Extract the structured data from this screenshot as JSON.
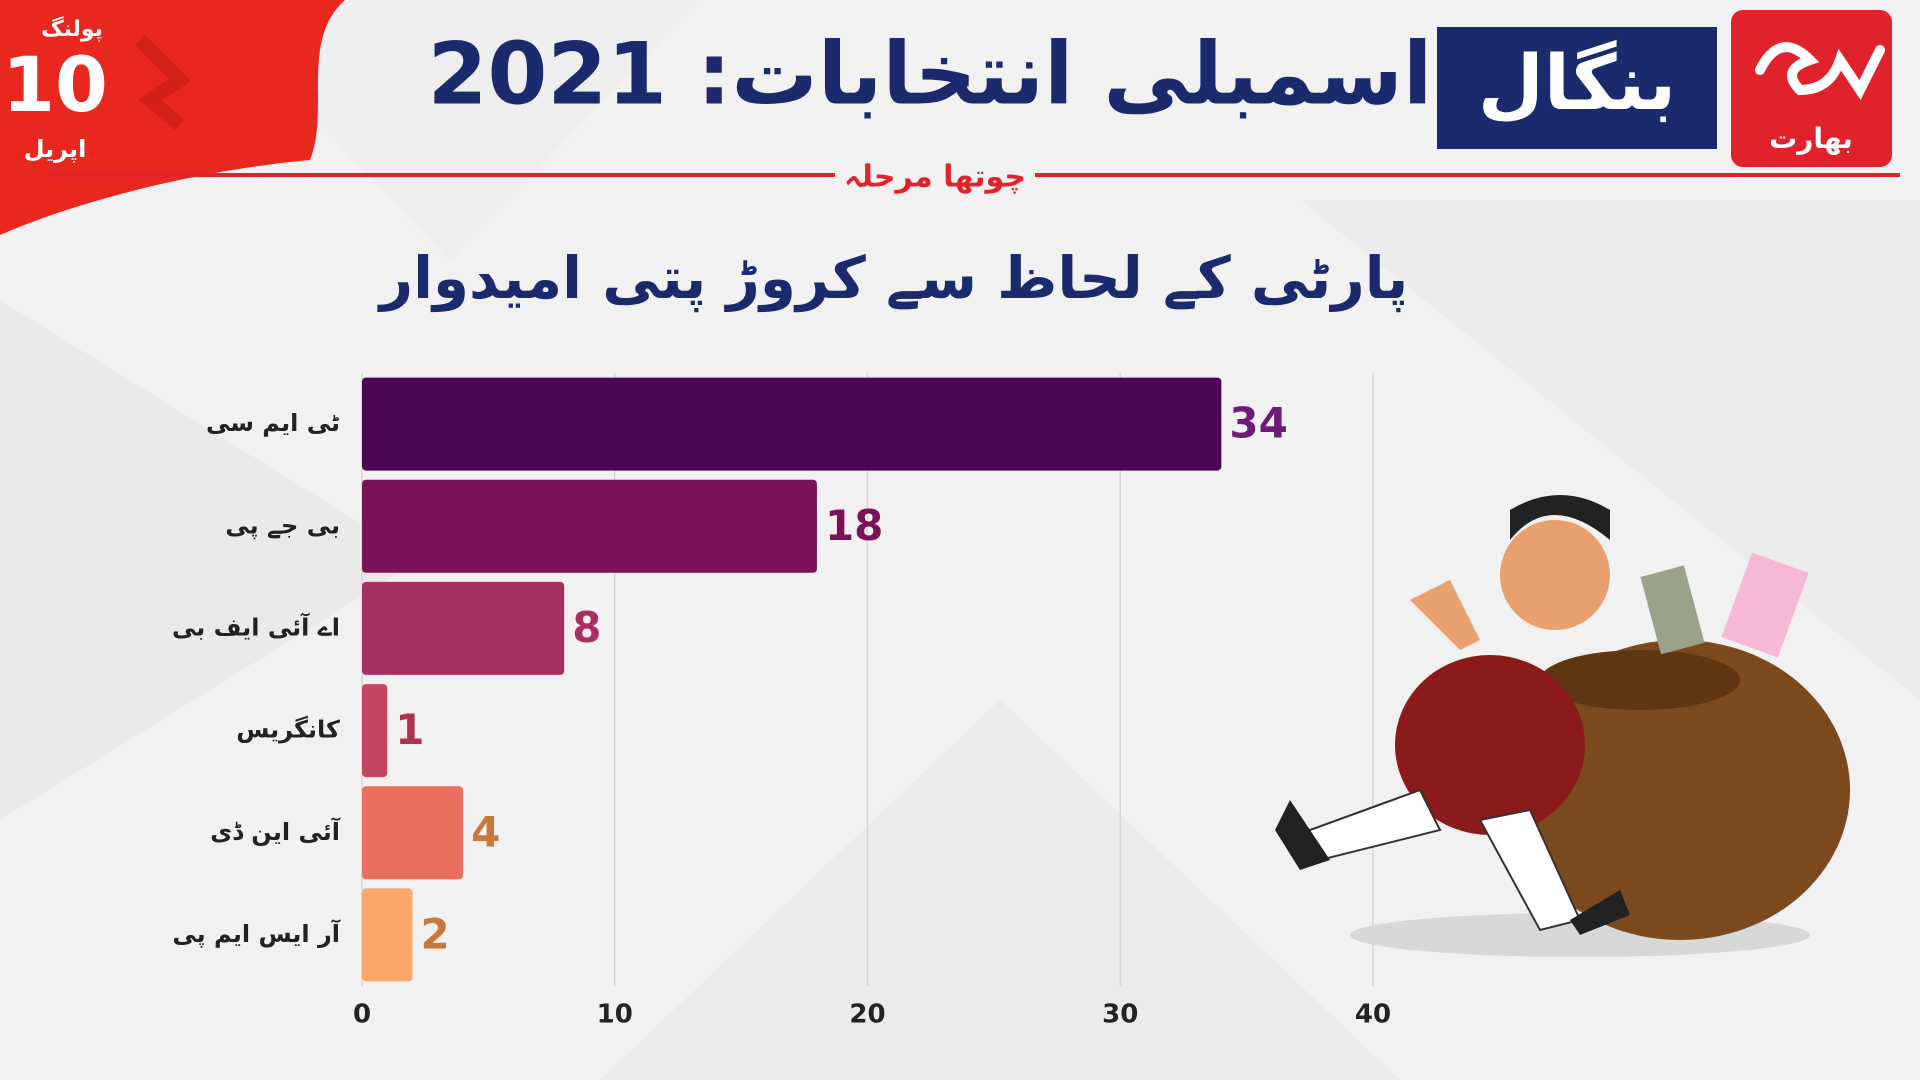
{
  "header": {
    "title": "اسمبلی انتخابات: 2021",
    "state": "بنگال",
    "phase": "چوتھا مرحلہ",
    "polling": "پولنگ",
    "day": "10",
    "month": "اپریل",
    "logo_text": "بھارت"
  },
  "chart_data": {
    "type": "hbar",
    "title": "پارٹی کے لحاظ سے کروڑ پتی امیدوار",
    "categories": [
      "ٹی ایم سی",
      "بی جے پی",
      "اے آئی ایف بی",
      "کانگریس",
      "آئی این ڈی",
      "آر ایس ایم پی"
    ],
    "values": [
      34,
      18,
      8,
      1,
      4,
      2
    ],
    "colors": [
      "#4b0653",
      "#7b1259",
      "#a82f62",
      "#c2455f",
      "#e9705f",
      "#f9a76a"
    ],
    "label_colors": [
      "#6d1a78",
      "#7b1259",
      "#a82f62",
      "#b0304f",
      "#c5793c",
      "#c5793c"
    ],
    "xlim": [
      0,
      40
    ],
    "xticks": [
      0,
      10,
      20,
      30,
      40
    ],
    "grid": true
  }
}
